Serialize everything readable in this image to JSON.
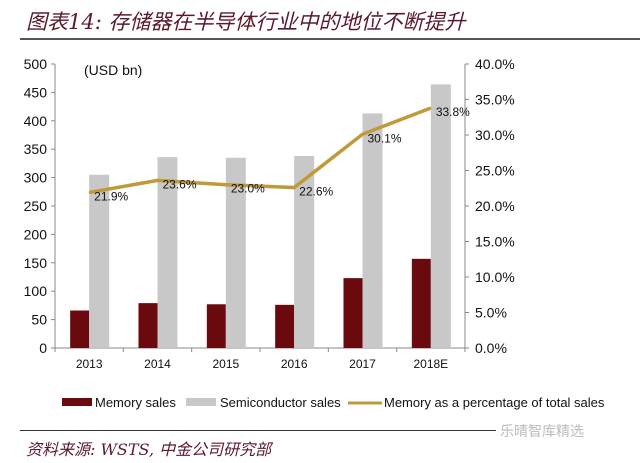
{
  "title": "图表14: 存储器在半导体行业中的地位不断提升",
  "source": "资料来源: WSTS, 中金公司研究部",
  "watermark": "乐晴智库精选",
  "chart_data": {
    "type": "bar",
    "categories": [
      "2013",
      "2014",
      "2015",
      "2016",
      "2017",
      "2018E"
    ],
    "unit_label": "(USD bn)",
    "ylim": [
      0,
      500
    ],
    "yticks": [
      0,
      50,
      100,
      150,
      200,
      250,
      300,
      350,
      400,
      450,
      500
    ],
    "y2lim": [
      0,
      40
    ],
    "y2ticks": [
      "0.0%",
      "5.0%",
      "10.0%",
      "15.0%",
      "20.0%",
      "25.0%",
      "30.0%",
      "35.0%",
      "40.0%"
    ],
    "grid": false,
    "legend_placement": "bottom",
    "series": [
      {
        "name": "Memory sales",
        "type": "bar",
        "axis": "left",
        "color": "#6b0a0e",
        "values": [
          66,
          79,
          77,
          76,
          123,
          157
        ]
      },
      {
        "name": "Semiconductor sales",
        "type": "bar",
        "axis": "left",
        "color": "#c8c8c8",
        "values": [
          305,
          336,
          335,
          338,
          413,
          464
        ]
      },
      {
        "name": "Memory as a percentage of total sales",
        "type": "line",
        "axis": "right",
        "color": "#c09a3a",
        "values": [
          21.9,
          23.6,
          23.0,
          22.6,
          30.1,
          33.8
        ],
        "labels": [
          "21.9%",
          "23.6%",
          "23.0%",
          "22.6%",
          "30.1%",
          "33.8%"
        ]
      }
    ]
  }
}
